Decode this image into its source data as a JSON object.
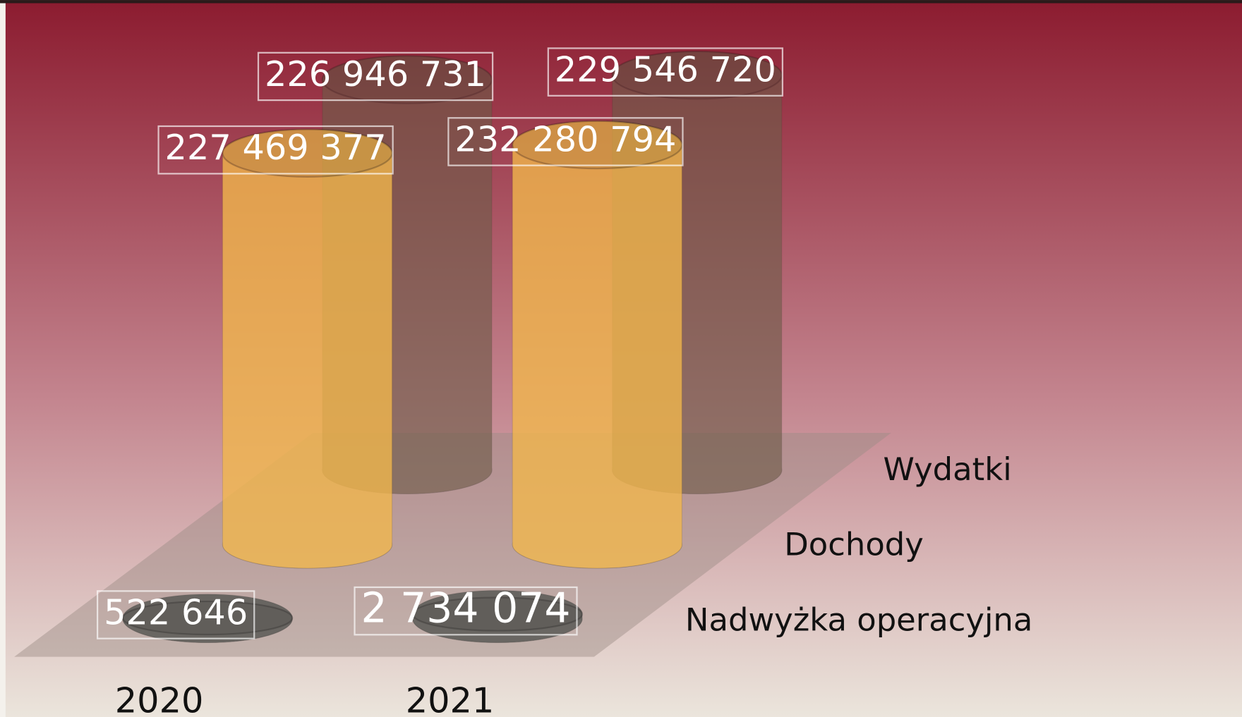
{
  "chart_data": {
    "type": "cylinder3d",
    "categories": [
      "2020",
      "2021"
    ],
    "series": [
      {
        "name": "Wydatki",
        "color": "#6e5b48",
        "values": [
          226946731,
          229546720
        ],
        "value_labels": [
          "226 946 731",
          "229 546 720"
        ]
      },
      {
        "name": "Dochody",
        "color": "#f3b84c",
        "values": [
          227469377,
          232280794
        ],
        "value_labels": [
          "227 469 377",
          "232 280 794"
        ]
      },
      {
        "name": "Nadwyżka operacyjna",
        "color": "#5a5a56",
        "values": [
          522646,
          2734074
        ],
        "value_labels": [
          "522 646",
          "2 734 074"
        ]
      }
    ]
  }
}
